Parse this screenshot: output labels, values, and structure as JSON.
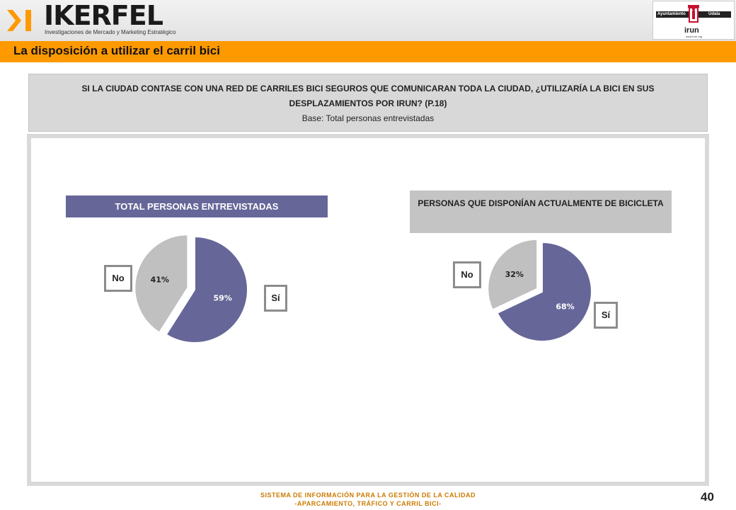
{
  "header": {
    "brand": "IKERFEL",
    "tagline": "Investigaciones de Mercado y Marketing Estratégico",
    "org_logo_left": "Ayuntamiento",
    "org_logo_right": "Udala",
    "org_logo_name": "irun",
    "org_logo_url": "www.irun.org",
    "accent_color": "#ff9900"
  },
  "title": "La disposición a utilizar el carril bici",
  "question": {
    "text": "SI LA CIUDAD CONTASE CON UNA RED DE CARRILES BICI SEGUROS QUE COMUNICARAN TODA LA CIUDAD, ¿UTILIZARÍA LA BICI EN SUS DESPLAZAMIENTOS POR IRUN? (P.18)",
    "base": "Base: Total personas entrevistadas"
  },
  "chart_data": [
    {
      "type": "pie",
      "title": "TOTAL PERSONAS ENTREVISTADAS",
      "categories": [
        "Sí",
        "No"
      ],
      "values": [
        59,
        41
      ],
      "labels": [
        "59%",
        "41%"
      ],
      "colors": [
        "#666699",
        "#c0c0c0"
      ],
      "exploded": "No",
      "callouts": [
        "No",
        "Sí"
      ]
    },
    {
      "type": "pie",
      "title": "PERSONAS QUE DISPONÍAN ACTUALMENTE DE BICICLETA",
      "categories": [
        "Sí",
        "No"
      ],
      "values": [
        68,
        32
      ],
      "labels": [
        "68%",
        "32%"
      ],
      "colors": [
        "#666699",
        "#c0c0c0"
      ],
      "exploded": "No",
      "callouts": [
        "No",
        "Sí"
      ]
    }
  ],
  "footer": {
    "line1": "SISTEMA DE INFORMACIÓN PARA LA GESTIÓN DE LA CALIDAD",
    "line2": "-APARCAMIENTO, TRÁFICO Y CARRIL BICI-",
    "page_number": "40"
  }
}
